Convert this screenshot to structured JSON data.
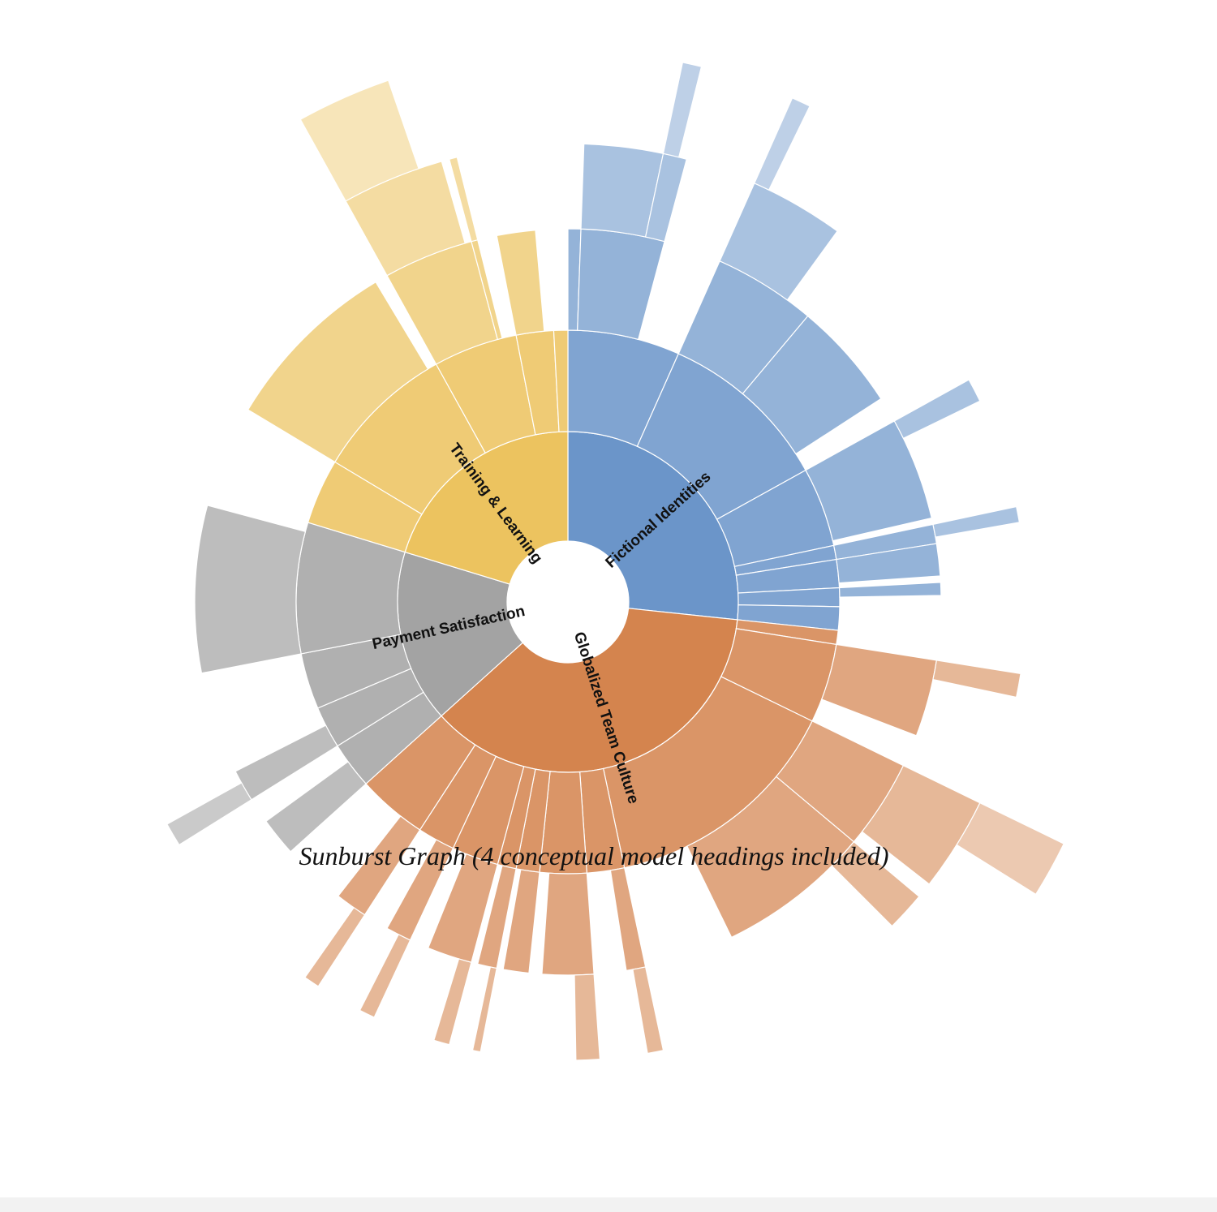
{
  "chart_data": {
    "type": "sunburst",
    "caption": "Sunburst Graph (4 conceptual model headings included)",
    "nodes": [
      {
        "name": "Fictional Identities",
        "color": "#6b95c9",
        "value": 96,
        "children": [
          {
            "value": 24,
            "children": [
              {
                "value": 2
              },
              {
                "value": 13,
                "children": [
                  {
                    "value": 10
                  },
                  {
                    "value": 3,
                    "children": [
                      {
                        "value": 2
                      }
                    ]
                  }
                ]
              }
            ]
          },
          {
            "value": 37,
            "children": [
              {
                "value": 16,
                "children": [
                  {
                    "value": 12,
                    "children": [
                      {
                        "value": 2
                      }
                    ]
                  }
                ]
              },
              {
                "value": 17
              }
            ]
          },
          {
            "value": 17,
            "children": [
              {
                "value": 16,
                "children": [
                  {
                    "value": 3
                  }
                ]
              }
            ]
          },
          {
            "value": 3,
            "children": [
              {
                "value": 3,
                "children": [
                  {
                    "value": 2
                  }
                ]
              }
            ]
          },
          {
            "value": 6,
            "children": [
              {
                "value": 5
              }
            ]
          },
          {
            "value": 4,
            "children": [
              {
                "value": 2
              }
            ]
          },
          {
            "value": 5
          }
        ]
      },
      {
        "name": "Globalized Team Culture",
        "color": "#d4844e",
        "value": 132,
        "children": [
          {
            "value": 3
          },
          {
            "value": 17,
            "children": [
              {
                "value": 12,
                "children": [
                  {
                    "value": 3
                  }
                ]
              }
            ]
          },
          {
            "value": 52,
            "children": [
              {
                "value": 14,
                "children": [
                  {
                    "value": 12,
                    "children": [
                      {
                        "value": 6
                      }
                    ]
                  }
                ]
              },
              {
                "value": 24,
                "children": [
                  {
                    "value": 5
                  }
                ]
              }
            ]
          },
          {
            "value": 8,
            "children": [
              {
                "value": 3,
                "children": [
                  {
                    "value": 2
                  }
                ]
              }
            ]
          },
          {
            "value": 10,
            "children": [
              {
                "value": 8,
                "children": [
                  {
                    "value": 3
                  }
                ]
              }
            ]
          },
          {
            "value": 5,
            "children": [
              {
                "value": 4
              }
            ]
          },
          {
            "value": 4,
            "children": [
              {
                "value": 3,
                "children": [
                  {
                    "value": 1
                  }
                ]
              }
            ]
          },
          {
            "value": 10,
            "children": [
              {
                "value": 7,
                "children": [
                  {
                    "value": 2
                  }
                ]
              }
            ]
          },
          {
            "value": 8,
            "children": [
              {
                "value": 4,
                "children": [
                  {
                    "value": 2
                  }
                ]
              }
            ]
          },
          {
            "value": 15,
            "children": [
              {
                "value": 5,
                "children": [
                  {
                    "value": 2
                  }
                ]
              }
            ]
          }
        ]
      },
      {
        "name": "Payment Satisfaction",
        "color": "#a3a3a3",
        "value": 59,
        "children": [
          {
            "value": 10,
            "children": [
              {
                "value": 6
              }
            ]
          },
          {
            "value": 9,
            "children": [
              {
                "value": 5,
                "children": [
                  {
                    "value": 3
                  }
                ]
              }
            ]
          },
          {
            "value": 12
          },
          {
            "value": 28,
            "children": [
              {
                "value": 26
              }
            ]
          }
        ]
      },
      {
        "name": "Training & Learning",
        "color": "#ecc35f",
        "value": 73,
        "children": [
          {
            "value": 14
          },
          {
            "value": 30,
            "children": [
              {
                "value": 28
              }
            ]
          },
          {
            "value": 18,
            "children": [
              {
                "value": 14,
                "children": [
                  {
                    "value": 13,
                    "children": [
                      {
                        "value": 10
                      }
                    ]
                  }
                ]
              },
              {
                "value": 1,
                "children": [
                  {
                    "value": 1
                  }
                ]
              }
            ]
          },
          {
            "value": 8,
            "children": [
              {
                "value": 6
              }
            ]
          },
          {
            "value": 3
          }
        ]
      }
    ]
  }
}
